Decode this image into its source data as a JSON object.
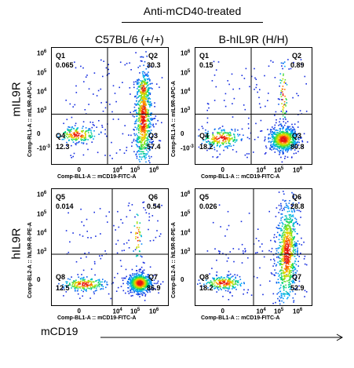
{
  "treatment_title": "Anti-mCD40-treated",
  "columns": [
    "C57BL/6 (+/+)",
    "B-hIL9R  (H/H)"
  ],
  "rows": [
    "mIL9R",
    "hIL9R"
  ],
  "x_axis_marker": "mCD19",
  "ticks": {
    "y_top_labels": [
      "6",
      "5",
      "4",
      "3",
      "0",
      "-3"
    ],
    "y_top_prefix": [
      "10",
      "10",
      "10",
      "10",
      "",
      "-10"
    ],
    "y_bottom_labels": [
      "6",
      "5",
      "4",
      "3",
      "0"
    ],
    "x_labels": [
      "0",
      "4",
      "5",
      "6"
    ]
  },
  "panels": [
    {
      "id": "p1",
      "x_label": "Comp-BL1-A :: mCD19-FITC-A",
      "y_label": "Comp-RL1-A :: mIL9R-APC-A",
      "quadrants": [
        {
          "name": "Q1",
          "value": "0.065"
        },
        {
          "name": "Q2",
          "value": "30.3"
        },
        {
          "name": "Q3",
          "value": "57.4"
        },
        {
          "name": "Q4",
          "value": "12.3"
        }
      ]
    },
    {
      "id": "p2",
      "x_label": "Comp-BL1-A :: mCD19-FITC-A",
      "y_label": "Comp-RL1-A :: mIL9R-APC-A",
      "quadrants": [
        {
          "name": "Q1",
          "value": "0.15"
        },
        {
          "name": "Q2",
          "value": "0.89"
        },
        {
          "name": "Q3",
          "value": "80.8"
        },
        {
          "name": "Q4",
          "value": "18.2"
        }
      ]
    },
    {
      "id": "p3",
      "x_label": "Comp-BL1-A :: mCD19-FITC-A",
      "y_label": "Comp-BL2-A :: hIL9R-R-PE-A",
      "quadrants": [
        {
          "name": "Q5",
          "value": "0.014"
        },
        {
          "name": "Q6",
          "value": "0.54"
        },
        {
          "name": "Q7",
          "value": "86.9"
        },
        {
          "name": "Q8",
          "value": "12.5"
        }
      ]
    },
    {
      "id": "p4",
      "x_label": "Comp-BL1-A :: mCD19-FITC-A",
      "y_label": "Comp-BL2-A :: hIL9R-R-PE-A",
      "quadrants": [
        {
          "name": "Q5",
          "value": "0.026"
        },
        {
          "name": "Q6",
          "value": "28.8"
        },
        {
          "name": "Q7",
          "value": "52.9"
        },
        {
          "name": "Q8",
          "value": "18.2"
        }
      ]
    }
  ]
}
